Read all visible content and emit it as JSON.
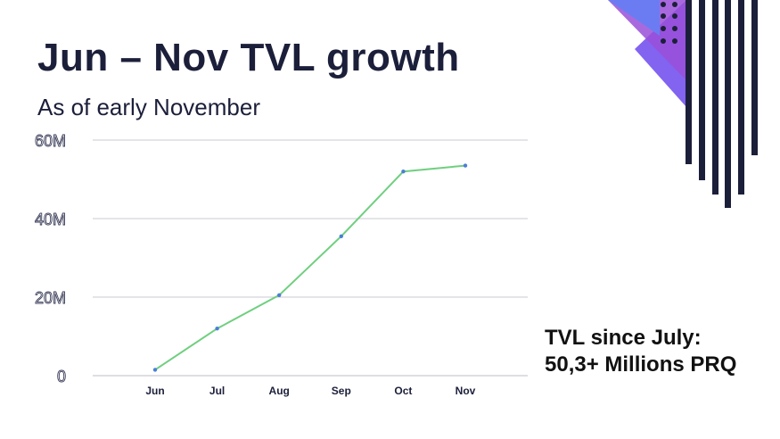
{
  "slide": {
    "title": "Jun – Nov TVL growth",
    "subtitle": "As of early November",
    "callout_line1": "TVL since July:",
    "callout_line2": "50,3+ Millions PRQ"
  },
  "colors": {
    "line": "#6fcf7f",
    "point": "#4a7fd6",
    "grid": "#c9c9d3",
    "axis_text": "#3a3d59",
    "deco_navy": "#1c1f3a",
    "deco_violet": "#7b5cf0",
    "deco_purple": "#9a4fd8"
  },
  "chart_data": {
    "type": "line",
    "categories": [
      "Jun",
      "Jul",
      "Aug",
      "Sep",
      "Oct",
      "Nov"
    ],
    "values": [
      1.5,
      12,
      20.5,
      35.5,
      52,
      53.5
    ],
    "ytick_labels": [
      "0",
      "20M",
      "40M",
      "60M"
    ],
    "ytick_values": [
      0,
      20,
      40,
      60
    ],
    "ylim": [
      0,
      60
    ],
    "grid": true,
    "legend": "none"
  }
}
